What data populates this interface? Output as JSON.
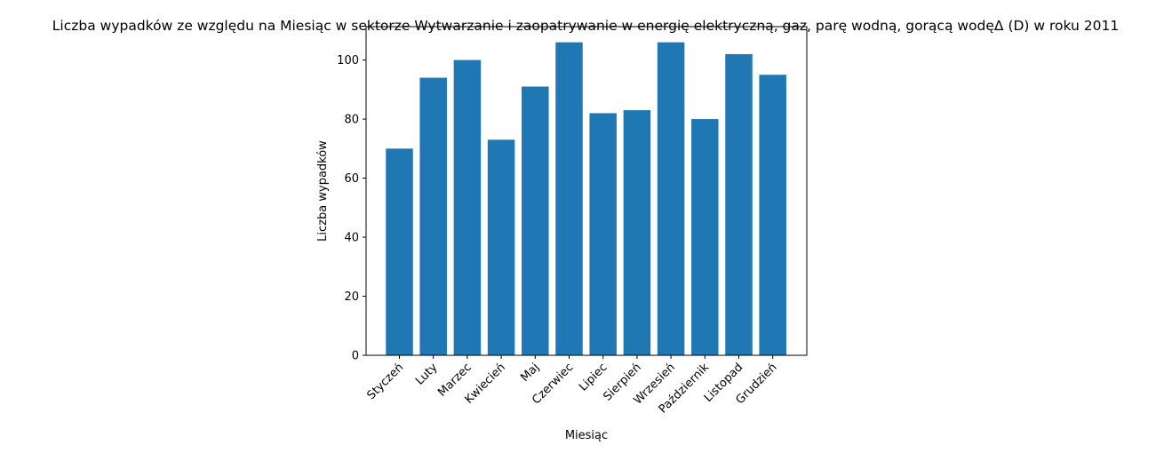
{
  "chart_data": {
    "type": "bar",
    "title": "Liczba wypadków ze względu na Miesiąc w sektorze Wytwarzanie i zaopatrywanie w energię elektryczną, gaz, parę wodną, gorącą wodęΔ  (D) w roku 2011",
    "xlabel": "Miesiąc",
    "ylabel": "Liczba wypadków",
    "categories": [
      "Styczeń",
      "Luty",
      "Marzec",
      "Kwiecień",
      "Maj",
      "Czerwiec",
      "Lipiec",
      "Sierpień",
      "Wrzesień",
      "Październik",
      "Listopad",
      "Grudzień"
    ],
    "values": [
      70,
      94,
      100,
      73,
      91,
      106,
      82,
      83,
      106,
      80,
      102,
      95
    ],
    "ylim": [
      0,
      111.3
    ],
    "yticks": [
      0,
      20,
      40,
      60,
      80,
      100
    ],
    "grid": false,
    "bar_color": "#1f77b4"
  }
}
